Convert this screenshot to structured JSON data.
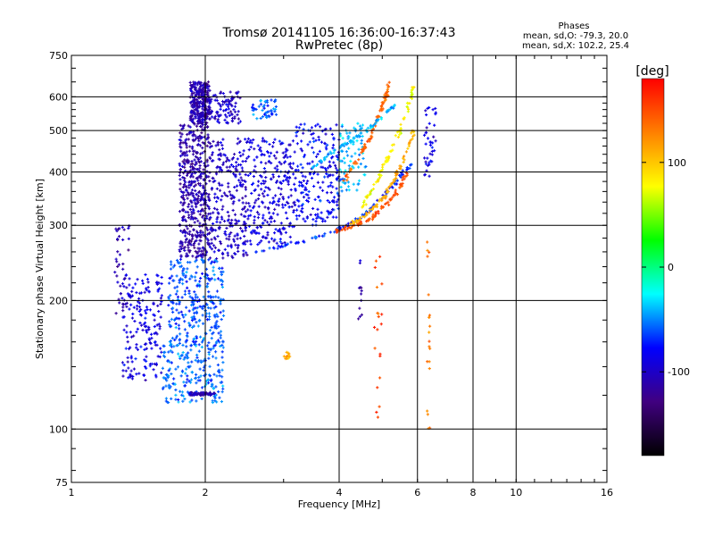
{
  "chart_data": {
    "type": "scatter",
    "title": "Tromsø 20141105 16:36:00-16:37:43",
    "subtitle": "RwPretec (8p)",
    "xlabel": "Frequency [MHz]",
    "ylabel": "Stationary phase Virtual Height [km]",
    "xscale": "log",
    "yscale": "log",
    "xlim": [
      1,
      16
    ],
    "ylim": [
      75,
      750
    ],
    "x_ticks": [
      1,
      2,
      4,
      6,
      8,
      10,
      16
    ],
    "y_ticks": [
      75,
      100,
      200,
      300,
      400,
      500,
      600,
      750
    ],
    "grid": true,
    "stats_header": "Phases",
    "stats": [
      "mean, sd,O: -79.3, 20.0",
      "mean, sd,X: 102.2, 25.4"
    ],
    "colorbar": {
      "label": "[deg]",
      "range": [
        -180,
        180
      ],
      "ticks": [
        -100,
        0,
        100
      ],
      "colors": [
        "#000000",
        "#400080",
        "#0000ff",
        "#00ffff",
        "#00ff00",
        "#ffff00",
        "#ff8000",
        "#ff0000"
      ]
    },
    "clusters": [
      {
        "x": [
          1.85,
          2.05
        ],
        "y": [
          520,
          650
        ],
        "phase": -110,
        "n": 300
      },
      {
        "x": [
          2.05,
          2.4
        ],
        "y": [
          520,
          620
        ],
        "phase": -100,
        "n": 90
      },
      {
        "x": [
          2.55,
          2.9
        ],
        "y": [
          530,
          590
        ],
        "phase": -60,
        "n": 50
      },
      {
        "x": [
          1.75,
          2.05
        ],
        "y": [
          250,
          520
        ],
        "phase": -110,
        "n": 480
      },
      {
        "x": [
          2.05,
          2.5
        ],
        "y": [
          250,
          480
        ],
        "phase": -100,
        "n": 260
      },
      {
        "x": [
          2.5,
          3.2
        ],
        "y": [
          270,
          480
        ],
        "phase": -90,
        "n": 260
      },
      {
        "x": [
          3.2,
          4.0
        ],
        "y": [
          300,
          520
        ],
        "phase": -80,
        "n": 200
      },
      {
        "x": [
          4.0,
          4.6
        ],
        "y": [
          360,
          520
        ],
        "phase": -40,
        "n": 80
      },
      {
        "x": [
          1.65,
          2.2
        ],
        "y": [
          160,
          250
        ],
        "phase": -60,
        "n": 280
      },
      {
        "x": [
          1.6,
          2.2
        ],
        "y": [
          115,
          160
        ],
        "phase": -55,
        "n": 220
      },
      {
        "x": [
          1.3,
          1.6
        ],
        "y": [
          130,
          230
        ],
        "phase": -90,
        "n": 180
      },
      {
        "x": [
          1.25,
          1.35
        ],
        "y": [
          180,
          300
        ],
        "phase": -110,
        "n": 40
      },
      {
        "x": [
          1.85,
          2.1
        ],
        "y": [
          120,
          122
        ],
        "phase": -110,
        "n": 60
      },
      {
        "x": [
          3.0,
          3.1
        ],
        "y": [
          145,
          152
        ],
        "phase": 110,
        "n": 12
      },
      {
        "x": [
          6.2,
          6.6
        ],
        "y": [
          380,
          600
        ],
        "phase": -90,
        "n": 40
      },
      {
        "x": [
          6.3,
          6.4
        ],
        "y": [
          100,
          280
        ],
        "phase": 130,
        "n": 20
      },
      {
        "x": [
          4.8,
          5.0
        ],
        "y": [
          105,
          260
        ],
        "phase": 150,
        "n": 20
      },
      {
        "x": [
          4.4,
          4.5
        ],
        "y": [
          180,
          260
        ],
        "phase": -110,
        "n": 12
      }
    ],
    "traces": [
      {
        "x": [
          2.6,
          3.2,
          3.8,
          4.2,
          4.6,
          5.0,
          5.4,
          5.8
        ],
        "y": [
          260,
          272,
          288,
          300,
          320,
          350,
          380,
          420
        ],
        "phase": -70
      },
      {
        "x": [
          3.9,
          4.3,
          4.7,
          5.1,
          5.4,
          5.7
        ],
        "y": [
          290,
          298,
          310,
          335,
          360,
          400
        ],
        "phase": 150
      },
      {
        "x": [
          4.2,
          4.6,
          5.0,
          5.3,
          5.6,
          5.9
        ],
        "y": [
          300,
          318,
          345,
          380,
          430,
          500
        ],
        "phase": 110
      },
      {
        "x": [
          4.5,
          4.8,
          5.1,
          5.4,
          5.7,
          5.9
        ],
        "y": [
          330,
          370,
          420,
          480,
          560,
          640
        ],
        "phase": 80
      },
      {
        "x": [
          4.1,
          4.4,
          4.7,
          4.9,
          5.1,
          5.2
        ],
        "y": [
          380,
          430,
          480,
          540,
          600,
          650
        ],
        "phase": 140
      },
      {
        "x": [
          3.4,
          3.8,
          4.2,
          4.6,
          5.0,
          5.4
        ],
        "y": [
          400,
          440,
          470,
          500,
          540,
          580
        ],
        "phase": -40
      }
    ]
  }
}
